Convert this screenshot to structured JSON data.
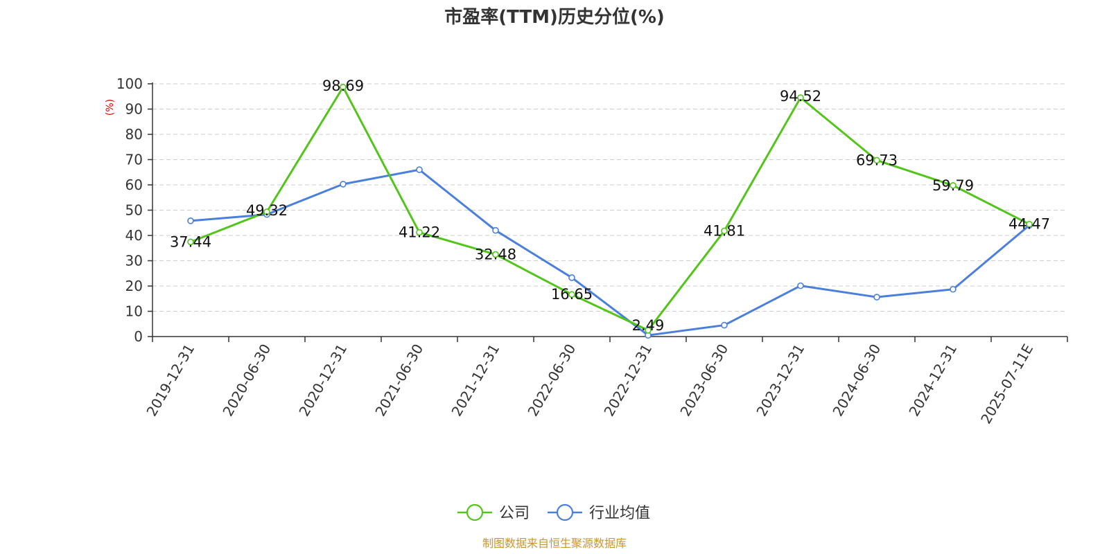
{
  "chart_data": {
    "type": "line",
    "title": "市盈率(TTM)历史分位(%)",
    "ylabel": "(%)",
    "ylim": [
      0,
      100
    ],
    "yticks": [
      0,
      10,
      20,
      30,
      40,
      50,
      60,
      70,
      80,
      90,
      100
    ],
    "grid": true,
    "legend_position": "bottom",
    "categories": [
      "2019-12-31",
      "2020-06-30",
      "2020-12-31",
      "2021-06-30",
      "2021-12-31",
      "2022-06-30",
      "2022-12-31",
      "2023-06-30",
      "2023-12-31",
      "2024-06-30",
      "2024-12-31",
      "2025-07-11E"
    ],
    "series": [
      {
        "name": "公司",
        "color": "#52c41a",
        "values": [
          37.44,
          49.32,
          98.69,
          41.22,
          32.48,
          16.65,
          2.49,
          41.81,
          94.52,
          69.73,
          59.79,
          44.47
        ],
        "labels": [
          "37.44",
          "49.32",
          "98.69",
          "41.22",
          "32.48",
          "16.65",
          "2.49",
          "41.81",
          "94.52",
          "69.73",
          "59.79",
          "44.47"
        ]
      },
      {
        "name": "行业均值",
        "color": "#4a7fdc",
        "values": [
          45.8,
          48.3,
          60.3,
          66.0,
          42.0,
          23.3,
          0.5,
          4.5,
          20.1,
          15.6,
          18.7,
          44.0
        ]
      }
    ],
    "source": "制图数据来自恒生聚源数据库"
  }
}
